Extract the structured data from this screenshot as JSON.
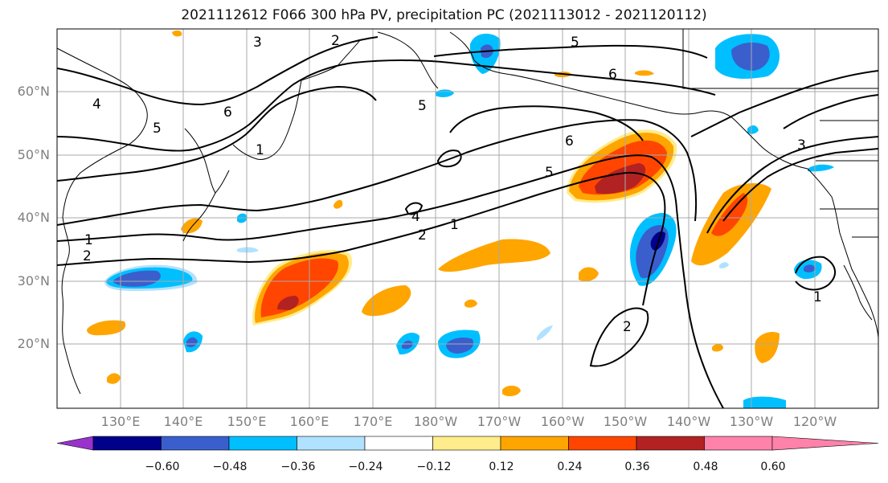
{
  "title": "2021112612 F066 300 hPa PV, precipitation PC (2021113012 - 2021120112)",
  "lat_labels": [
    "60°N",
    "50°N",
    "40°N",
    "30°N",
    "20°N"
  ],
  "lon_labels": [
    "130°E",
    "140°E",
    "150°E",
    "160°E",
    "170°E",
    "180°W",
    "170°W",
    "160°W",
    "150°W",
    "140°W",
    "130°W",
    "120°W"
  ],
  "pv_contour_labels": [
    "1",
    "2",
    "3",
    "4",
    "5",
    "6"
  ],
  "colorbar": {
    "ticks": [
      "−0.60",
      "−0.48",
      "−0.36",
      "−0.24",
      "−0.12",
      "0.12",
      "0.24",
      "0.36",
      "0.48",
      "0.60"
    ],
    "colors": [
      "#9932cc",
      "#00008b",
      "#3a5fcd",
      "#00bfff",
      "#b0e2ff",
      "#ffffff",
      "#ffec8b",
      "#ffa500",
      "#ff4500",
      "#b22222",
      "#ff82ab"
    ]
  },
  "map_colors": {
    "land_line": "#000000",
    "grid": "#a9a9a9",
    "contour": "#000000"
  }
}
